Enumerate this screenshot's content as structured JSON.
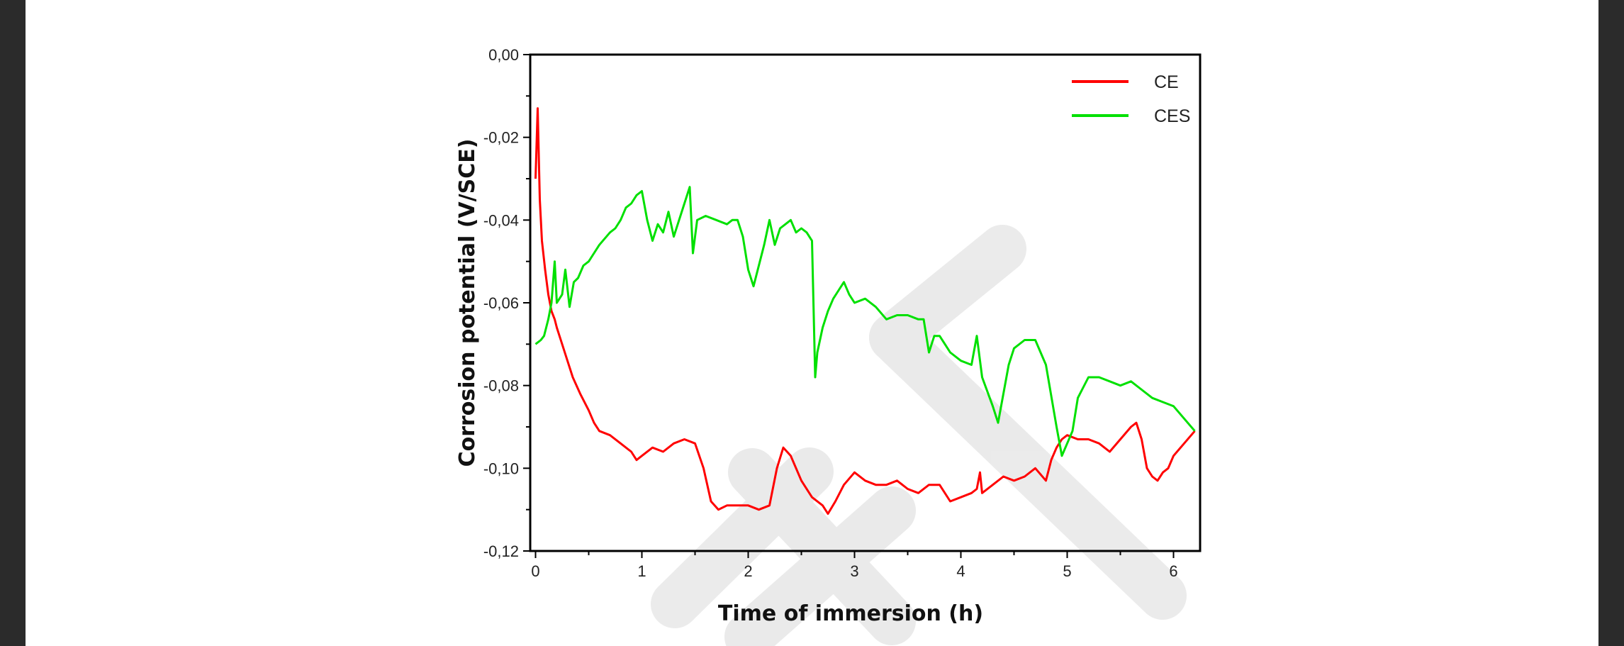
{
  "chart_data": {
    "type": "line",
    "xlabel": "Time of immersion (h)",
    "ylabel": "Corrosion potential (V/SCE)",
    "xlim": [
      -0.05,
      6.25
    ],
    "ylim": [
      -0.12,
      0.0
    ],
    "x_ticks": [
      0,
      1,
      2,
      3,
      4,
      5,
      6
    ],
    "x_tick_labels": [
      "0",
      "1",
      "2",
      "3",
      "4",
      "5",
      "6"
    ],
    "y_ticks": [
      0.0,
      -0.02,
      -0.04,
      -0.06,
      -0.08,
      -0.1,
      -0.12
    ],
    "y_tick_labels": [
      "0,00",
      "-0,02",
      "-0,04",
      "-0,06",
      "-0,08",
      "-0,10",
      "-0,12"
    ],
    "grid": false,
    "legend_position": "top-right",
    "series": [
      {
        "name": "CE",
        "color": "#ff0000",
        "points": [
          [
            0.0,
            -0.03
          ],
          [
            0.02,
            -0.013
          ],
          [
            0.04,
            -0.035
          ],
          [
            0.06,
            -0.045
          ],
          [
            0.09,
            -0.052
          ],
          [
            0.12,
            -0.058
          ],
          [
            0.15,
            -0.062
          ],
          [
            0.18,
            -0.064
          ],
          [
            0.2,
            -0.066
          ],
          [
            0.25,
            -0.07
          ],
          [
            0.3,
            -0.074
          ],
          [
            0.35,
            -0.078
          ],
          [
            0.42,
            -0.082
          ],
          [
            0.5,
            -0.086
          ],
          [
            0.55,
            -0.089
          ],
          [
            0.6,
            -0.091
          ],
          [
            0.7,
            -0.092
          ],
          [
            0.8,
            -0.094
          ],
          [
            0.9,
            -0.096
          ],
          [
            0.95,
            -0.098
          ],
          [
            1.0,
            -0.097
          ],
          [
            1.1,
            -0.095
          ],
          [
            1.2,
            -0.096
          ],
          [
            1.3,
            -0.094
          ],
          [
            1.4,
            -0.093
          ],
          [
            1.5,
            -0.094
          ],
          [
            1.58,
            -0.1
          ],
          [
            1.65,
            -0.108
          ],
          [
            1.72,
            -0.11
          ],
          [
            1.8,
            -0.109
          ],
          [
            1.9,
            -0.109
          ],
          [
            2.0,
            -0.109
          ],
          [
            2.1,
            -0.11
          ],
          [
            2.2,
            -0.109
          ],
          [
            2.27,
            -0.1
          ],
          [
            2.33,
            -0.095
          ],
          [
            2.4,
            -0.097
          ],
          [
            2.5,
            -0.103
          ],
          [
            2.6,
            -0.107
          ],
          [
            2.7,
            -0.109
          ],
          [
            2.75,
            -0.111
          ],
          [
            2.82,
            -0.108
          ],
          [
            2.9,
            -0.104
          ],
          [
            3.0,
            -0.101
          ],
          [
            3.1,
            -0.103
          ],
          [
            3.2,
            -0.104
          ],
          [
            3.3,
            -0.104
          ],
          [
            3.4,
            -0.103
          ],
          [
            3.5,
            -0.105
          ],
          [
            3.6,
            -0.106
          ],
          [
            3.7,
            -0.104
          ],
          [
            3.8,
            -0.104
          ],
          [
            3.9,
            -0.108
          ],
          [
            4.0,
            -0.107
          ],
          [
            4.1,
            -0.106
          ],
          [
            4.15,
            -0.105
          ],
          [
            4.18,
            -0.101
          ],
          [
            4.2,
            -0.106
          ],
          [
            4.3,
            -0.104
          ],
          [
            4.4,
            -0.102
          ],
          [
            4.5,
            -0.103
          ],
          [
            4.6,
            -0.102
          ],
          [
            4.7,
            -0.1
          ],
          [
            4.8,
            -0.103
          ],
          [
            4.85,
            -0.098
          ],
          [
            4.9,
            -0.095
          ],
          [
            4.95,
            -0.093
          ],
          [
            5.0,
            -0.092
          ],
          [
            5.1,
            -0.093
          ],
          [
            5.2,
            -0.093
          ],
          [
            5.3,
            -0.094
          ],
          [
            5.4,
            -0.096
          ],
          [
            5.5,
            -0.093
          ],
          [
            5.6,
            -0.09
          ],
          [
            5.65,
            -0.089
          ],
          [
            5.7,
            -0.093
          ],
          [
            5.75,
            -0.1
          ],
          [
            5.8,
            -0.102
          ],
          [
            5.85,
            -0.103
          ],
          [
            5.9,
            -0.101
          ],
          [
            5.95,
            -0.1
          ],
          [
            6.0,
            -0.097
          ],
          [
            6.1,
            -0.094
          ],
          [
            6.2,
            -0.091
          ]
        ]
      },
      {
        "name": "CES",
        "color": "#00e000",
        "points": [
          [
            0.0,
            -0.07
          ],
          [
            0.05,
            -0.069
          ],
          [
            0.08,
            -0.068
          ],
          [
            0.12,
            -0.064
          ],
          [
            0.15,
            -0.06
          ],
          [
            0.18,
            -0.05
          ],
          [
            0.2,
            -0.06
          ],
          [
            0.25,
            -0.058
          ],
          [
            0.28,
            -0.052
          ],
          [
            0.32,
            -0.061
          ],
          [
            0.36,
            -0.055
          ],
          [
            0.4,
            -0.054
          ],
          [
            0.45,
            -0.051
          ],
          [
            0.5,
            -0.05
          ],
          [
            0.55,
            -0.048
          ],
          [
            0.6,
            -0.046
          ],
          [
            0.7,
            -0.043
          ],
          [
            0.75,
            -0.042
          ],
          [
            0.8,
            -0.04
          ],
          [
            0.85,
            -0.037
          ],
          [
            0.9,
            -0.036
          ],
          [
            0.95,
            -0.034
          ],
          [
            1.0,
            -0.033
          ],
          [
            1.05,
            -0.04
          ],
          [
            1.1,
            -0.045
          ],
          [
            1.15,
            -0.041
          ],
          [
            1.2,
            -0.043
          ],
          [
            1.25,
            -0.038
          ],
          [
            1.3,
            -0.044
          ],
          [
            1.35,
            -0.04
          ],
          [
            1.4,
            -0.036
          ],
          [
            1.45,
            -0.032
          ],
          [
            1.48,
            -0.048
          ],
          [
            1.52,
            -0.04
          ],
          [
            1.6,
            -0.039
          ],
          [
            1.7,
            -0.04
          ],
          [
            1.8,
            -0.041
          ],
          [
            1.85,
            -0.04
          ],
          [
            1.9,
            -0.04
          ],
          [
            1.95,
            -0.044
          ],
          [
            2.0,
            -0.052
          ],
          [
            2.05,
            -0.056
          ],
          [
            2.1,
            -0.051
          ],
          [
            2.15,
            -0.046
          ],
          [
            2.2,
            -0.04
          ],
          [
            2.25,
            -0.046
          ],
          [
            2.3,
            -0.042
          ],
          [
            2.35,
            -0.041
          ],
          [
            2.4,
            -0.04
          ],
          [
            2.45,
            -0.043
          ],
          [
            2.5,
            -0.042
          ],
          [
            2.55,
            -0.043
          ],
          [
            2.6,
            -0.045
          ],
          [
            2.63,
            -0.078
          ],
          [
            2.65,
            -0.072
          ],
          [
            2.7,
            -0.066
          ],
          [
            2.75,
            -0.062
          ],
          [
            2.8,
            -0.059
          ],
          [
            2.85,
            -0.057
          ],
          [
            2.9,
            -0.055
          ],
          [
            2.95,
            -0.058
          ],
          [
            3.0,
            -0.06
          ],
          [
            3.1,
            -0.059
          ],
          [
            3.2,
            -0.061
          ],
          [
            3.3,
            -0.064
          ],
          [
            3.4,
            -0.063
          ],
          [
            3.5,
            -0.063
          ],
          [
            3.6,
            -0.064
          ],
          [
            3.65,
            -0.064
          ],
          [
            3.7,
            -0.072
          ],
          [
            3.75,
            -0.068
          ],
          [
            3.8,
            -0.068
          ],
          [
            3.85,
            -0.07
          ],
          [
            3.9,
            -0.072
          ],
          [
            4.0,
            -0.074
          ],
          [
            4.1,
            -0.075
          ],
          [
            4.15,
            -0.068
          ],
          [
            4.2,
            -0.078
          ],
          [
            4.3,
            -0.085
          ],
          [
            4.35,
            -0.089
          ],
          [
            4.4,
            -0.082
          ],
          [
            4.45,
            -0.075
          ],
          [
            4.5,
            -0.071
          ],
          [
            4.6,
            -0.069
          ],
          [
            4.7,
            -0.069
          ],
          [
            4.8,
            -0.075
          ],
          [
            4.9,
            -0.09
          ],
          [
            4.95,
            -0.097
          ],
          [
            5.0,
            -0.094
          ],
          [
            5.05,
            -0.091
          ],
          [
            5.1,
            -0.083
          ],
          [
            5.2,
            -0.078
          ],
          [
            5.3,
            -0.078
          ],
          [
            5.4,
            -0.079
          ],
          [
            5.5,
            -0.08
          ],
          [
            5.6,
            -0.079
          ],
          [
            5.7,
            -0.081
          ],
          [
            5.8,
            -0.083
          ],
          [
            5.9,
            -0.084
          ],
          [
            6.0,
            -0.085
          ],
          [
            6.1,
            -0.088
          ],
          [
            6.2,
            -0.091
          ]
        ]
      }
    ]
  }
}
